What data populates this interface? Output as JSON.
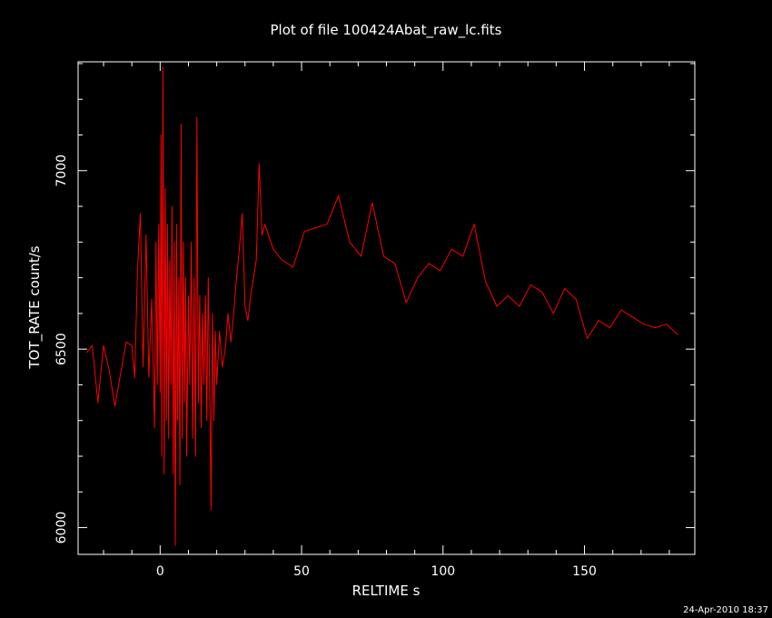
{
  "chart_data": {
    "type": "line",
    "title": "Plot of file 100424Abat_raw_lc.fits",
    "xlabel": "RELTIME   s",
    "ylabel": "TOT_RATE   count/s",
    "timestamp": "24-Apr-2010 18:37",
    "xlim": [
      -29,
      189
    ],
    "ylim": [
      5925,
      7305
    ],
    "x_ticks": [
      0,
      50,
      100,
      150
    ],
    "y_ticks": [
      6000,
      6500,
      7000
    ],
    "grid": false,
    "line_color": "#ff0000",
    "axis_color": "#ffffff",
    "series": [
      {
        "values": [
          [
            -26,
            6490
          ],
          [
            -24,
            6510
          ],
          [
            -22,
            6350
          ],
          [
            -20,
            6510
          ],
          [
            -18,
            6440
          ],
          [
            -16,
            6340
          ],
          [
            -14,
            6430
          ],
          [
            -12,
            6520
          ],
          [
            -10,
            6510
          ],
          [
            -9,
            6420
          ],
          [
            -8,
            6720
          ],
          [
            -7,
            6880
          ],
          [
            -6,
            6450
          ],
          [
            -5,
            6820
          ],
          [
            -4,
            6420
          ],
          [
            -3,
            6640
          ],
          [
            -2,
            6280
          ],
          [
            -1.5,
            6800
          ],
          [
            -1,
            6400
          ],
          [
            -0.5,
            6850
          ],
          [
            0,
            6380
          ],
          [
            0.3,
            7100
          ],
          [
            0.6,
            6200
          ],
          [
            1,
            7290
          ],
          [
            1.4,
            6150
          ],
          [
            1.8,
            6950
          ],
          [
            2.2,
            6300
          ],
          [
            2.6,
            6850
          ],
          [
            3,
            6250
          ],
          [
            3.4,
            6750
          ],
          [
            3.8,
            6400
          ],
          [
            4.2,
            6900
          ],
          [
            4.6,
            6150
          ],
          [
            5,
            6800
          ],
          [
            5.4,
            5950
          ],
          [
            5.8,
            6850
          ],
          [
            6.2,
            6300
          ],
          [
            6.6,
            6700
          ],
          [
            7,
            6120
          ],
          [
            7.4,
            7130
          ],
          [
            7.8,
            6250
          ],
          [
            8.2,
            6800
          ],
          [
            8.6,
            6350
          ],
          [
            9,
            6700
          ],
          [
            9.4,
            6200
          ],
          [
            10,
            6650
          ],
          [
            10.5,
            6400
          ],
          [
            11,
            6800
          ],
          [
            11.5,
            6250
          ],
          [
            12,
            6700
          ],
          [
            12.5,
            6200
          ],
          [
            13,
            7150
          ],
          [
            13.5,
            6350
          ],
          [
            14,
            6650
          ],
          [
            14.5,
            6280
          ],
          [
            15,
            6600
          ],
          [
            15.5,
            6400
          ],
          [
            16,
            6650
          ],
          [
            16.5,
            6300
          ],
          [
            17,
            6700
          ],
          [
            17.5,
            6400
          ],
          [
            18,
            6050
          ],
          [
            18.5,
            6600
          ],
          [
            19,
            6300
          ],
          [
            19.5,
            6550
          ],
          [
            20,
            6400
          ],
          [
            21,
            6550
          ],
          [
            22,
            6450
          ],
          [
            23,
            6500
          ],
          [
            24,
            6600
          ],
          [
            25,
            6520
          ],
          [
            26,
            6600
          ],
          [
            27,
            6700
          ],
          [
            28,
            6780
          ],
          [
            29,
            6880
          ],
          [
            30,
            6620
          ],
          [
            31,
            6580
          ],
          [
            32,
            6650
          ],
          [
            33,
            6700
          ],
          [
            34,
            6750
          ],
          [
            35,
            7020
          ],
          [
            36,
            6820
          ],
          [
            37,
            6850
          ],
          [
            40,
            6780
          ],
          [
            43,
            6750
          ],
          [
            47,
            6730
          ],
          [
            51,
            6830
          ],
          [
            55,
            6840
          ],
          [
            59,
            6850
          ],
          [
            63,
            6930
          ],
          [
            67,
            6800
          ],
          [
            71,
            6760
          ],
          [
            75,
            6910
          ],
          [
            79,
            6760
          ],
          [
            83,
            6740
          ],
          [
            87,
            6630
          ],
          [
            91,
            6700
          ],
          [
            95,
            6740
          ],
          [
            99,
            6720
          ],
          [
            103,
            6780
          ],
          [
            107,
            6760
          ],
          [
            111,
            6850
          ],
          [
            115,
            6690
          ],
          [
            119,
            6620
          ],
          [
            123,
            6650
          ],
          [
            127,
            6620
          ],
          [
            131,
            6680
          ],
          [
            135,
            6660
          ],
          [
            139,
            6600
          ],
          [
            143,
            6670
          ],
          [
            147,
            6640
          ],
          [
            151,
            6530
          ],
          [
            155,
            6580
          ],
          [
            159,
            6560
          ],
          [
            163,
            6610
          ],
          [
            167,
            6590
          ],
          [
            171,
            6570
          ],
          [
            175,
            6560
          ],
          [
            179,
            6570
          ],
          [
            183,
            6540
          ]
        ]
      }
    ]
  }
}
